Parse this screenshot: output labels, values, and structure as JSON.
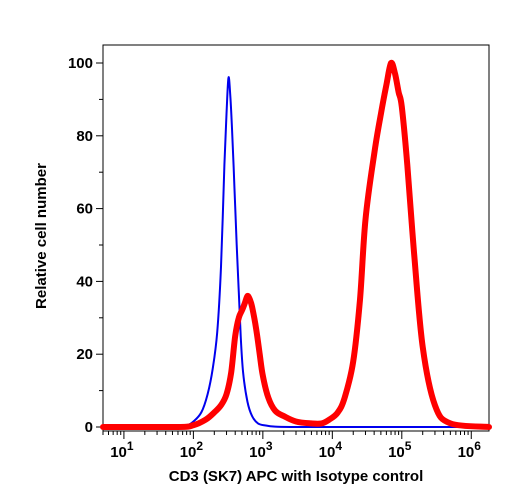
{
  "chart_data": {
    "type": "line",
    "title": "",
    "xlabel": "CD3 (SK7) APC with Isotype control",
    "ylabel": "Relative cell number",
    "x_scale": "log",
    "xlim": [
      5,
      1800000
    ],
    "ylim": [
      0,
      100
    ],
    "x_ticks": [
      {
        "value": 10,
        "base": "10",
        "exp": "1"
      },
      {
        "value": 100,
        "base": "10",
        "exp": "2"
      },
      {
        "value": 1000,
        "base": "10",
        "exp": "3"
      },
      {
        "value": 10000,
        "base": "10",
        "exp": "4"
      },
      {
        "value": 100000,
        "base": "10",
        "exp": "5"
      },
      {
        "value": 1000000,
        "base": "10",
        "exp": "6"
      }
    ],
    "y_ticks": [
      0,
      20,
      40,
      60,
      80,
      100
    ],
    "grid": false,
    "series": [
      {
        "color": "#0000ee",
        "x": [
          5,
          50,
          80,
          100,
          130,
          160,
          190,
          220,
          250,
          280,
          300,
          320,
          340,
          360,
          390,
          420,
          450,
          480,
          520,
          600,
          700,
          850,
          1100,
          1500,
          3000,
          10000,
          100000,
          1800000
        ],
        "y": [
          0,
          0,
          0.5,
          1.5,
          4,
          9,
          16,
          26,
          44,
          72,
          86,
          96,
          91,
          82,
          66,
          50,
          37,
          25,
          15,
          7,
          3,
          1,
          0.4,
          0.1,
          0,
          0,
          0,
          0
        ]
      },
      {
        "color": "#ff0000",
        "x": [
          5,
          60,
          100,
          150,
          200,
          250,
          300,
          350,
          400,
          450,
          500,
          550,
          600,
          650,
          700,
          800,
          900,
          1000,
          1200,
          1500,
          2000,
          3000,
          5000,
          7000,
          9000,
          12000,
          15000,
          20000,
          25000,
          30000,
          40000,
          50000,
          60000,
          70000,
          80000,
          90000,
          100000,
          120000,
          150000,
          200000,
          300000,
          500000,
          1800000
        ],
        "y": [
          0,
          0,
          0.5,
          2,
          4,
          6,
          9,
          15,
          25,
          30,
          32,
          34,
          36,
          35,
          33,
          27,
          20,
          14,
          8,
          4.5,
          3,
          1.5,
          1,
          1,
          2,
          4,
          8,
          18,
          35,
          57,
          75,
          86,
          94,
          100,
          97,
          92,
          88,
          72,
          48,
          22,
          6,
          1,
          0
        ]
      }
    ]
  }
}
